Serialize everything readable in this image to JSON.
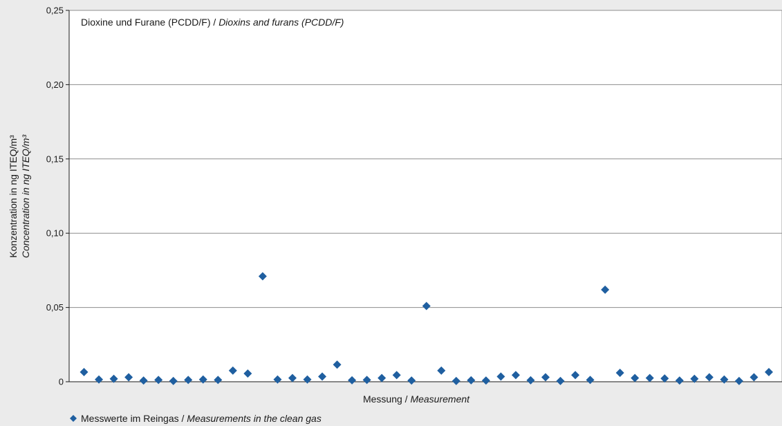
{
  "chart_data": {
    "type": "scatter",
    "title": {
      "de": "Dioxine und Furane (PCDD/F)",
      "sep": " / ",
      "en": "Dioxins and furans (PCDD/F)"
    },
    "xlabel": {
      "de": "Messung",
      "sep": " / ",
      "en": "Measurement"
    },
    "ylabel": {
      "de": "Konzentration in ng ITEQ/m³",
      "en": "Concentration in ng ITEQ/m³"
    },
    "ylim": [
      0,
      0.25
    ],
    "y_ticks": [
      {
        "value": 0,
        "label": "0"
      },
      {
        "value": 0.05,
        "label": "0,05"
      },
      {
        "value": 0.1,
        "label": "0,10"
      },
      {
        "value": 0.15,
        "label": "0,15"
      },
      {
        "value": 0.2,
        "label": "0,20"
      },
      {
        "value": 0.25,
        "label": "0,25"
      }
    ],
    "grid": true,
    "legend_position": "bottom-left",
    "series": [
      {
        "name": {
          "de": "Messwerte im Reingas",
          "sep": " / ",
          "en": "Measurements in the clean gas"
        },
        "color": "#1f5fa0",
        "marker": "diamond",
        "values": [
          0.0065,
          0.0015,
          0.002,
          0.003,
          0.0008,
          0.0012,
          0.0005,
          0.0012,
          0.0015,
          0.0012,
          0.0075,
          0.0055,
          0.071,
          0.0015,
          0.0025,
          0.0015,
          0.0035,
          0.0115,
          0.001,
          0.0012,
          0.0025,
          0.0045,
          0.0008,
          0.051,
          0.0075,
          0.0005,
          0.001,
          0.0008,
          0.0035,
          0.0045,
          0.001,
          0.003,
          0.0005,
          0.0045,
          0.0012,
          0.062,
          0.006,
          0.0025,
          0.0025,
          0.0022,
          0.0008,
          0.002,
          0.003,
          0.0015,
          0.0005,
          0.003,
          0.0065
        ]
      }
    ]
  }
}
